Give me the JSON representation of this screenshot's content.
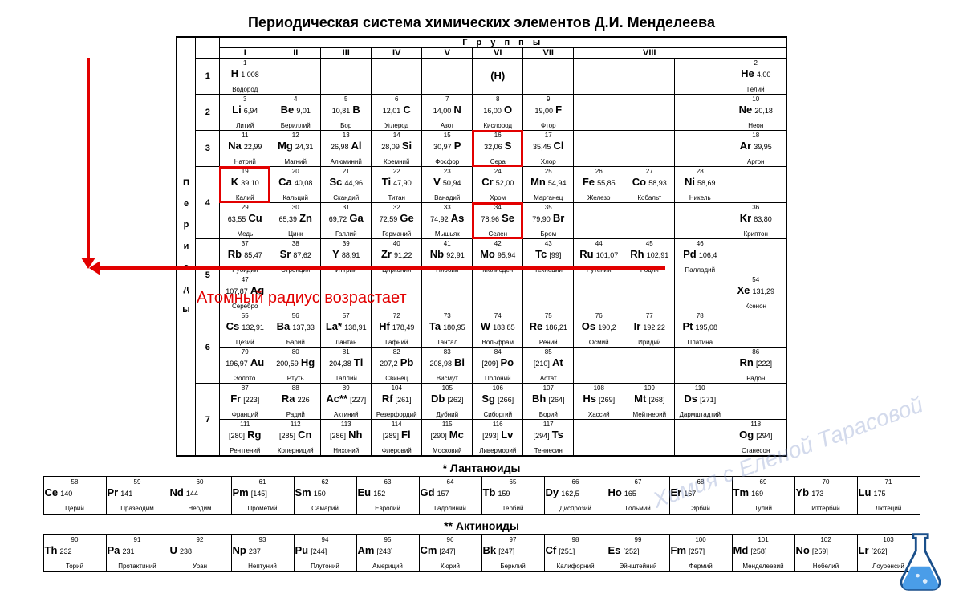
{
  "title": "Периодическая система химических элементов Д.И. Менделеева",
  "groups_header": "Г р у п п ы",
  "group_nums": [
    "I",
    "II",
    "III",
    "IV",
    "V",
    "VI",
    "VII",
    "VIII"
  ],
  "periods_label": "П<br>е<br>р<br>и<br>о<br>д<br>ы",
  "annotation": "Атомный радиус возрастает",
  "watermark": "Химия с Еленой Тарасовой",
  "lanth_title": "* Лантаноиды",
  "act_title": "** Актиноиды",
  "highlight_color": "#e20000",
  "highlighted": [
    16,
    19,
    34
  ],
  "flask_color": "#4a9de8",
  "elements": [
    {
      "Z": 1,
      "sym": "H",
      "mass": "1,008",
      "name": "Водород",
      "p": 1,
      "g": 1
    },
    {
      "Z": 2,
      "sym": "He",
      "mass": "4,00",
      "name": "Гелий",
      "p": 1,
      "g": 18
    },
    {
      "Z": 3,
      "sym": "Li",
      "mass": "6,94",
      "name": "Литий",
      "p": 2,
      "g": 1
    },
    {
      "Z": 4,
      "sym": "Be",
      "mass": "9,01",
      "name": "Бериллий",
      "p": 2,
      "g": 2
    },
    {
      "Z": 5,
      "sym": "B",
      "mass": "10,81",
      "name": "Бор",
      "p": 2,
      "g": 3,
      "rt": true
    },
    {
      "Z": 6,
      "sym": "C",
      "mass": "12,01",
      "name": "Углерод",
      "p": 2,
      "g": 4,
      "rt": true
    },
    {
      "Z": 7,
      "sym": "N",
      "mass": "14,00",
      "name": "Азот",
      "p": 2,
      "g": 5,
      "rt": true
    },
    {
      "Z": 8,
      "sym": "O",
      "mass": "16,00",
      "name": "Кислород",
      "p": 2,
      "g": 6,
      "rt": true
    },
    {
      "Z": 9,
      "sym": "F",
      "mass": "19,00",
      "name": "Фтор",
      "p": 2,
      "g": 7,
      "rt": true
    },
    {
      "Z": 10,
      "sym": "Ne",
      "mass": "20,18",
      "name": "Неон",
      "p": 2,
      "g": 18
    },
    {
      "Z": 11,
      "sym": "Na",
      "mass": "22,99",
      "name": "Натрий",
      "p": 3,
      "g": 1
    },
    {
      "Z": 12,
      "sym": "Mg",
      "mass": "24,31",
      "name": "Магний",
      "p": 3,
      "g": 2
    },
    {
      "Z": 13,
      "sym": "Al",
      "mass": "26,98",
      "name": "Алюминий",
      "p": 3,
      "g": 3,
      "rt": true
    },
    {
      "Z": 14,
      "sym": "Si",
      "mass": "28,09",
      "name": "Кремний",
      "p": 3,
      "g": 4,
      "rt": true
    },
    {
      "Z": 15,
      "sym": "P",
      "mass": "30,97",
      "name": "Фосфор",
      "p": 3,
      "g": 5,
      "rt": true
    },
    {
      "Z": 16,
      "sym": "S",
      "mass": "32,06",
      "name": "Сера",
      "p": 3,
      "g": 6,
      "rt": true
    },
    {
      "Z": 17,
      "sym": "Cl",
      "mass": "35,45",
      "name": "Хлор",
      "p": 3,
      "g": 7,
      "rt": true
    },
    {
      "Z": 18,
      "sym": "Ar",
      "mass": "39,95",
      "name": "Аргон",
      "p": 3,
      "g": 18
    },
    {
      "Z": 19,
      "sym": "K",
      "mass": "39,10",
      "name": "Калий",
      "p": 4,
      "g": 1,
      "sub": "a"
    },
    {
      "Z": 20,
      "sym": "Ca",
      "mass": "40,08",
      "name": "Кальций",
      "p": 4,
      "g": 2,
      "sub": "a"
    },
    {
      "Z": 21,
      "sym": "Sc",
      "mass": "44,96",
      "name": "Скандий",
      "p": 4,
      "g": 3,
      "sub": "a"
    },
    {
      "Z": 22,
      "sym": "Ti",
      "mass": "47,90",
      "name": "Титан",
      "p": 4,
      "g": 4,
      "sub": "a"
    },
    {
      "Z": 23,
      "sym": "V",
      "mass": "50,94",
      "name": "Ванадий",
      "p": 4,
      "g": 5,
      "sub": "a"
    },
    {
      "Z": 24,
      "sym": "Cr",
      "mass": "52,00",
      "name": "Хром",
      "p": 4,
      "g": 6,
      "sub": "a"
    },
    {
      "Z": 25,
      "sym": "Mn",
      "mass": "54,94",
      "name": "Марганец",
      "p": 4,
      "g": 7,
      "sub": "a"
    },
    {
      "Z": 26,
      "sym": "Fe",
      "mass": "55,85",
      "name": "Железо",
      "p": 4,
      "g": 8,
      "sub": "a"
    },
    {
      "Z": 27,
      "sym": "Co",
      "mass": "58,93",
      "name": "Кобальт",
      "p": 4,
      "g": 9,
      "sub": "a"
    },
    {
      "Z": 28,
      "sym": "Ni",
      "mass": "58,69",
      "name": "Никель",
      "p": 4,
      "g": 10,
      "sub": "a"
    },
    {
      "Z": 29,
      "sym": "Cu",
      "mass": "63,55",
      "name": "Медь",
      "p": 4,
      "g": 1,
      "sub": "b",
      "rt": true
    },
    {
      "Z": 30,
      "sym": "Zn",
      "mass": "65,39",
      "name": "Цинк",
      "p": 4,
      "g": 2,
      "sub": "b",
      "rt": true
    },
    {
      "Z": 31,
      "sym": "Ga",
      "mass": "69,72",
      "name": "Галлий",
      "p": 4,
      "g": 3,
      "sub": "b",
      "rt": true
    },
    {
      "Z": 32,
      "sym": "Ge",
      "mass": "72,59",
      "name": "Германий",
      "p": 4,
      "g": 4,
      "sub": "b",
      "rt": true
    },
    {
      "Z": 33,
      "sym": "As",
      "mass": "74,92",
      "name": "Мышьяк",
      "p": 4,
      "g": 5,
      "sub": "b",
      "rt": true
    },
    {
      "Z": 34,
      "sym": "Se",
      "mass": "78,96",
      "name": "Селен",
      "p": 4,
      "g": 6,
      "sub": "b",
      "rt": true
    },
    {
      "Z": 35,
      "sym": "Br",
      "mass": "79,90",
      "name": "Бром",
      "p": 4,
      "g": 7,
      "sub": "b",
      "rt": true
    },
    {
      "Z": 36,
      "sym": "Kr",
      "mass": "83,80",
      "name": "Криптон",
      "p": 4,
      "g": 18,
      "sub": "b"
    },
    {
      "Z": 37,
      "sym": "Rb",
      "mass": "85,47",
      "name": "Рубидий",
      "p": 5,
      "g": 1,
      "sub": "a"
    },
    {
      "Z": 38,
      "sym": "Sr",
      "mass": "87,62",
      "name": "Стронций",
      "p": 5,
      "g": 2,
      "sub": "a"
    },
    {
      "Z": 39,
      "sym": "Y",
      "mass": "88,91",
      "name": "Иттрий",
      "p": 5,
      "g": 3,
      "sub": "a"
    },
    {
      "Z": 40,
      "sym": "Zr",
      "mass": "91,22",
      "name": "Цирконий",
      "p": 5,
      "g": 4,
      "sub": "a"
    },
    {
      "Z": 41,
      "sym": "Nb",
      "mass": "92,91",
      "name": "Ниобий",
      "p": 5,
      "g": 5,
      "sub": "a"
    },
    {
      "Z": 42,
      "sym": "Mo",
      "mass": "95,94",
      "name": "Молибден",
      "p": 5,
      "g": 6,
      "sub": "a"
    },
    {
      "Z": 43,
      "sym": "Tc",
      "mass": "[99]",
      "name": "Технеций",
      "p": 5,
      "g": 7,
      "sub": "a"
    },
    {
      "Z": 44,
      "sym": "Ru",
      "mass": "101,07",
      "name": "Рутений",
      "p": 5,
      "g": 8,
      "sub": "a"
    },
    {
      "Z": 45,
      "sym": "Rh",
      "mass": "102,91",
      "name": "Родий",
      "p": 5,
      "g": 9,
      "sub": "a"
    },
    {
      "Z": 46,
      "sym": "Pd",
      "mass": "106,4",
      "name": "Палладий",
      "p": 5,
      "g": 10,
      "sub": "a"
    },
    {
      "Z": 47,
      "sym": "Ag",
      "mass": "107,87",
      "name": "Серебро",
      "p": 5,
      "g": 1,
      "sub": "b",
      "rt": true
    },
    {
      "Z": 54,
      "sym": "Xe",
      "mass": "131,29",
      "name": "Ксенон",
      "p": 5,
      "g": 18,
      "sub": "b"
    },
    {
      "Z": 55,
      "sym": "Cs",
      "mass": "132,91",
      "name": "Цезий",
      "p": 6,
      "g": 1,
      "sub": "a"
    },
    {
      "Z": 56,
      "sym": "Ba",
      "mass": "137,33",
      "name": "Барий",
      "p": 6,
      "g": 2,
      "sub": "a"
    },
    {
      "Z": 57,
      "sym": "La*",
      "mass": "138,91",
      "name": "Лантан",
      "p": 6,
      "g": 3,
      "sub": "a"
    },
    {
      "Z": 72,
      "sym": "Hf",
      "mass": "178,49",
      "name": "Гафний",
      "p": 6,
      "g": 4,
      "sub": "a"
    },
    {
      "Z": 73,
      "sym": "Ta",
      "mass": "180,95",
      "name": "Тантал",
      "p": 6,
      "g": 5,
      "sub": "a"
    },
    {
      "Z": 74,
      "sym": "W",
      "mass": "183,85",
      "name": "Вольфрам",
      "p": 6,
      "g": 6,
      "sub": "a"
    },
    {
      "Z": 75,
      "sym": "Re",
      "mass": "186,21",
      "name": "Рений",
      "p": 6,
      "g": 7,
      "sub": "a"
    },
    {
      "Z": 76,
      "sym": "Os",
      "mass": "190,2",
      "name": "Осмий",
      "p": 6,
      "g": 8,
      "sub": "a"
    },
    {
      "Z": 77,
      "sym": "Ir",
      "mass": "192,22",
      "name": "Иридий",
      "p": 6,
      "g": 9,
      "sub": "a"
    },
    {
      "Z": 78,
      "sym": "Pt",
      "mass": "195,08",
      "name": "Платина",
      "p": 6,
      "g": 10,
      "sub": "a"
    },
    {
      "Z": 79,
      "sym": "Au",
      "mass": "196,97",
      "name": "Золото",
      "p": 6,
      "g": 1,
      "sub": "b",
      "rt": true
    },
    {
      "Z": 80,
      "sym": "Hg",
      "mass": "200,59",
      "name": "Ртуть",
      "p": 6,
      "g": 2,
      "sub": "b",
      "rt": true
    },
    {
      "Z": 81,
      "sym": "Tl",
      "mass": "204,38",
      "name": "Таллий",
      "p": 6,
      "g": 3,
      "sub": "b",
      "rt": true
    },
    {
      "Z": 82,
      "sym": "Pb",
      "mass": "207,2",
      "name": "Свинец",
      "p": 6,
      "g": 4,
      "sub": "b",
      "rt": true
    },
    {
      "Z": 83,
      "sym": "Bi",
      "mass": "208,98",
      "name": "Висмут",
      "p": 6,
      "g": 5,
      "sub": "b",
      "rt": true
    },
    {
      "Z": 84,
      "sym": "Po",
      "mass": "[209]",
      "name": "Полоний",
      "p": 6,
      "g": 6,
      "sub": "b",
      "rt": true
    },
    {
      "Z": 85,
      "sym": "At",
      "mass": "[210]",
      "name": "Астат",
      "p": 6,
      "g": 7,
      "sub": "b",
      "rt": true
    },
    {
      "Z": 86,
      "sym": "Rn",
      "mass": "[222]",
      "name": "Радон",
      "p": 6,
      "g": 18,
      "sub": "b"
    },
    {
      "Z": 87,
      "sym": "Fr",
      "mass": "[223]",
      "name": "Франций",
      "p": 7,
      "g": 1,
      "sub": "a"
    },
    {
      "Z": 88,
      "sym": "Ra",
      "mass": "226",
      "name": "Радий",
      "p": 7,
      "g": 2,
      "sub": "a"
    },
    {
      "Z": 89,
      "sym": "Ac**",
      "mass": "[227]",
      "name": "Актиний",
      "p": 7,
      "g": 3,
      "sub": "a"
    },
    {
      "Z": 104,
      "sym": "Rf",
      "mass": "[261]",
      "name": "Резерфордий",
      "p": 7,
      "g": 4,
      "sub": "a"
    },
    {
      "Z": 105,
      "sym": "Db",
      "mass": "[262]",
      "name": "Дубний",
      "p": 7,
      "g": 5,
      "sub": "a"
    },
    {
      "Z": 106,
      "sym": "Sg",
      "mass": "[266]",
      "name": "Сиборгий",
      "p": 7,
      "g": 6,
      "sub": "a"
    },
    {
      "Z": 107,
      "sym": "Bh",
      "mass": "[264]",
      "name": "Борий",
      "p": 7,
      "g": 7,
      "sub": "a"
    },
    {
      "Z": 108,
      "sym": "Hs",
      "mass": "[269]",
      "name": "Хассий",
      "p": 7,
      "g": 8,
      "sub": "a"
    },
    {
      "Z": 109,
      "sym": "Mt",
      "mass": "[268]",
      "name": "Мейтнерий",
      "p": 7,
      "g": 9,
      "sub": "a"
    },
    {
      "Z": 110,
      "sym": "Ds",
      "mass": "[271]",
      "name": "Дармштадтий",
      "p": 7,
      "g": 10,
      "sub": "a"
    },
    {
      "Z": 111,
      "sym": "Rg",
      "mass": "[280]",
      "name": "Рентгений",
      "p": 7,
      "g": 1,
      "sub": "b",
      "rt": true
    },
    {
      "Z": 112,
      "sym": "Cn",
      "mass": "[285]",
      "name": "Коперниций",
      "p": 7,
      "g": 2,
      "sub": "b",
      "rt": true
    },
    {
      "Z": 113,
      "sym": "Nh",
      "mass": "[286]",
      "name": "Нихоний",
      "p": 7,
      "g": 3,
      "sub": "b",
      "rt": true
    },
    {
      "Z": 114,
      "sym": "Fl",
      "mass": "[289]",
      "name": "Флеровий",
      "p": 7,
      "g": 4,
      "sub": "b",
      "rt": true
    },
    {
      "Z": 115,
      "sym": "Mc",
      "mass": "[290]",
      "name": "Московий",
      "p": 7,
      "g": 5,
      "sub": "b",
      "rt": true
    },
    {
      "Z": 116,
      "sym": "Lv",
      "mass": "[293]",
      "name": "Ливерморий",
      "p": 7,
      "g": 6,
      "sub": "b",
      "rt": true
    },
    {
      "Z": 117,
      "sym": "Ts",
      "mass": "[294]",
      "name": "Теннесин",
      "p": 7,
      "g": 7,
      "sub": "b",
      "rt": true
    },
    {
      "Z": 118,
      "sym": "Og",
      "mass": "[294]",
      "name": "Оганесон",
      "p": 7,
      "g": 18,
      "sub": "b"
    }
  ],
  "lanth": [
    {
      "Z": 58,
      "sym": "Ce",
      "mass": "140",
      "name": "Церий"
    },
    {
      "Z": 59,
      "sym": "Pr",
      "mass": "141",
      "name": "Празеодим"
    },
    {
      "Z": 60,
      "sym": "Nd",
      "mass": "144",
      "name": "Неодим"
    },
    {
      "Z": 61,
      "sym": "Pm",
      "mass": "[145]",
      "name": "Прометий"
    },
    {
      "Z": 62,
      "sym": "Sm",
      "mass": "150",
      "name": "Самарий"
    },
    {
      "Z": 63,
      "sym": "Eu",
      "mass": "152",
      "name": "Европий"
    },
    {
      "Z": 64,
      "sym": "Gd",
      "mass": "157",
      "name": "Гадолиний"
    },
    {
      "Z": 65,
      "sym": "Tb",
      "mass": "159",
      "name": "Тербий"
    },
    {
      "Z": 66,
      "sym": "Dy",
      "mass": "162,5",
      "name": "Диспрозий"
    },
    {
      "Z": 67,
      "sym": "Ho",
      "mass": "165",
      "name": "Гольмий"
    },
    {
      "Z": 68,
      "sym": "Er",
      "mass": "167",
      "name": "Эрбий"
    },
    {
      "Z": 69,
      "sym": "Tm",
      "mass": "169",
      "name": "Тулий"
    },
    {
      "Z": 70,
      "sym": "Yb",
      "mass": "173",
      "name": "Иттербий"
    },
    {
      "Z": 71,
      "sym": "Lu",
      "mass": "175",
      "name": "Лютеций"
    }
  ],
  "act": [
    {
      "Z": 90,
      "sym": "Th",
      "mass": "232",
      "name": "Торий"
    },
    {
      "Z": 91,
      "sym": "Pa",
      "mass": "231",
      "name": "Протактиний"
    },
    {
      "Z": 92,
      "sym": "U",
      "mass": "238",
      "name": "Уран"
    },
    {
      "Z": 93,
      "sym": "Np",
      "mass": "237",
      "name": "Нептуний"
    },
    {
      "Z": 94,
      "sym": "Pu",
      "mass": "[244]",
      "name": "Плутоний"
    },
    {
      "Z": 95,
      "sym": "Am",
      "mass": "[243]",
      "name": "Америций"
    },
    {
      "Z": 96,
      "sym": "Cm",
      "mass": "[247]",
      "name": "Кюрий"
    },
    {
      "Z": 97,
      "sym": "Bk",
      "mass": "[247]",
      "name": "Берклий"
    },
    {
      "Z": 98,
      "sym": "Cf",
      "mass": "[251]",
      "name": "Калифорний"
    },
    {
      "Z": 99,
      "sym": "Es",
      "mass": "[252]",
      "name": "Эйнштейний"
    },
    {
      "Z": 100,
      "sym": "Fm",
      "mass": "[257]",
      "name": "Фермий"
    },
    {
      "Z": 101,
      "sym": "Md",
      "mass": "[258]",
      "name": "Менделеевий"
    },
    {
      "Z": 102,
      "sym": "No",
      "mass": "[259]",
      "name": "Нобелий"
    },
    {
      "Z": 103,
      "sym": "Lr",
      "mass": "[262]",
      "name": "Лоуренсий"
    }
  ]
}
